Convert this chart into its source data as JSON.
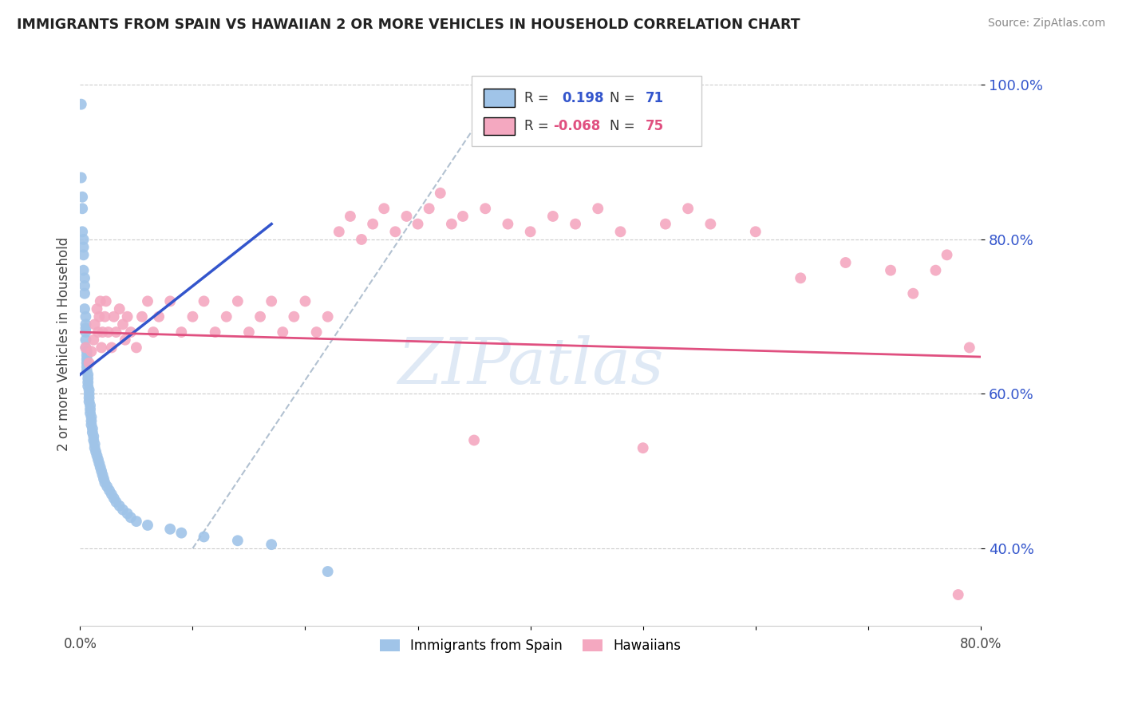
{
  "title": "IMMIGRANTS FROM SPAIN VS HAWAIIAN 2 OR MORE VEHICLES IN HOUSEHOLD CORRELATION CHART",
  "source": "Source: ZipAtlas.com",
  "ylabel": "2 or more Vehicles in Household",
  "legend_label1": "Immigrants from Spain",
  "legend_label2": "Hawaiians",
  "blue_color": "#a0c4e8",
  "pink_color": "#f4a8c0",
  "blue_line_color": "#3355cc",
  "pink_line_color": "#e05080",
  "dash_line_color": "#aaccee",
  "xmin": 0.0,
  "xmax": 0.8,
  "ymin": 0.3,
  "ymax": 1.03,
  "ytick_vals": [
    0.4,
    0.6,
    0.8,
    1.0
  ],
  "blue_scatter_x": [
    0.001,
    0.001,
    0.002,
    0.002,
    0.002,
    0.003,
    0.003,
    0.003,
    0.003,
    0.004,
    0.004,
    0.004,
    0.004,
    0.005,
    0.005,
    0.005,
    0.005,
    0.005,
    0.005,
    0.006,
    0.006,
    0.006,
    0.006,
    0.006,
    0.006,
    0.007,
    0.007,
    0.007,
    0.007,
    0.008,
    0.008,
    0.008,
    0.008,
    0.009,
    0.009,
    0.009,
    0.01,
    0.01,
    0.01,
    0.011,
    0.011,
    0.012,
    0.012,
    0.013,
    0.013,
    0.014,
    0.015,
    0.016,
    0.017,
    0.018,
    0.019,
    0.02,
    0.021,
    0.022,
    0.024,
    0.026,
    0.028,
    0.03,
    0.032,
    0.035,
    0.038,
    0.042,
    0.045,
    0.05,
    0.06,
    0.08,
    0.09,
    0.11,
    0.14,
    0.17,
    0.22
  ],
  "blue_scatter_y": [
    0.975,
    0.88,
    0.855,
    0.84,
    0.81,
    0.8,
    0.79,
    0.78,
    0.76,
    0.75,
    0.74,
    0.73,
    0.71,
    0.7,
    0.69,
    0.685,
    0.68,
    0.67,
    0.66,
    0.655,
    0.65,
    0.645,
    0.64,
    0.635,
    0.63,
    0.625,
    0.62,
    0.615,
    0.61,
    0.605,
    0.6,
    0.595,
    0.59,
    0.585,
    0.58,
    0.575,
    0.57,
    0.565,
    0.56,
    0.555,
    0.55,
    0.545,
    0.54,
    0.535,
    0.53,
    0.525,
    0.52,
    0.515,
    0.51,
    0.505,
    0.5,
    0.495,
    0.49,
    0.485,
    0.48,
    0.475,
    0.47,
    0.465,
    0.46,
    0.455,
    0.45,
    0.445,
    0.44,
    0.435,
    0.43,
    0.425,
    0.42,
    0.415,
    0.41,
    0.405,
    0.37
  ],
  "pink_scatter_x": [
    0.005,
    0.008,
    0.01,
    0.012,
    0.013,
    0.015,
    0.016,
    0.017,
    0.018,
    0.019,
    0.02,
    0.022,
    0.023,
    0.025,
    0.028,
    0.03,
    0.032,
    0.035,
    0.038,
    0.04,
    0.042,
    0.045,
    0.05,
    0.055,
    0.06,
    0.065,
    0.07,
    0.08,
    0.09,
    0.1,
    0.11,
    0.12,
    0.13,
    0.14,
    0.15,
    0.16,
    0.17,
    0.18,
    0.19,
    0.2,
    0.21,
    0.22,
    0.23,
    0.24,
    0.25,
    0.26,
    0.27,
    0.28,
    0.29,
    0.3,
    0.31,
    0.32,
    0.33,
    0.34,
    0.35,
    0.36,
    0.38,
    0.4,
    0.42,
    0.44,
    0.46,
    0.48,
    0.5,
    0.52,
    0.54,
    0.56,
    0.6,
    0.64,
    0.68,
    0.72,
    0.74,
    0.76,
    0.77,
    0.78,
    0.79
  ],
  "pink_scatter_y": [
    0.66,
    0.64,
    0.655,
    0.67,
    0.69,
    0.71,
    0.68,
    0.7,
    0.72,
    0.66,
    0.68,
    0.7,
    0.72,
    0.68,
    0.66,
    0.7,
    0.68,
    0.71,
    0.69,
    0.67,
    0.7,
    0.68,
    0.66,
    0.7,
    0.72,
    0.68,
    0.7,
    0.72,
    0.68,
    0.7,
    0.72,
    0.68,
    0.7,
    0.72,
    0.68,
    0.7,
    0.72,
    0.68,
    0.7,
    0.72,
    0.68,
    0.7,
    0.81,
    0.83,
    0.8,
    0.82,
    0.84,
    0.81,
    0.83,
    0.82,
    0.84,
    0.86,
    0.82,
    0.83,
    0.54,
    0.84,
    0.82,
    0.81,
    0.83,
    0.82,
    0.84,
    0.81,
    0.53,
    0.82,
    0.84,
    0.82,
    0.81,
    0.75,
    0.77,
    0.76,
    0.73,
    0.76,
    0.78,
    0.34,
    0.66
  ],
  "watermark": "ZIPatlas"
}
